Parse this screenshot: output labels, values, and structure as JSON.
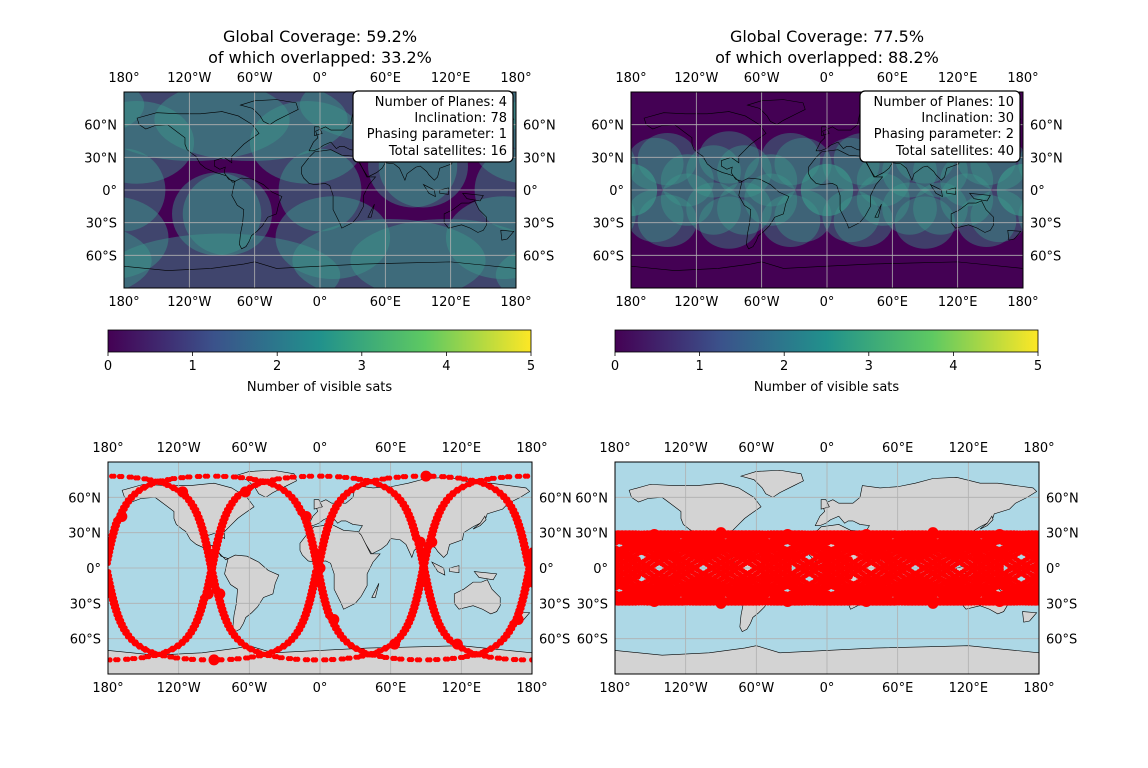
{
  "colors": {
    "viridis": [
      "#440154",
      "#3b528b",
      "#21918c",
      "#5ec962",
      "#fde725"
    ],
    "ocean": "#add8e6",
    "land": "#d3d3d3",
    "sat": "#ff0000",
    "grid": "#b0b0b0"
  },
  "ticks": {
    "lon": [
      "180°",
      "120°W",
      "60°W",
      "0°",
      "60°E",
      "120°E",
      "180°"
    ],
    "lat": [
      "60°N",
      "30°N",
      "0°",
      "30°S",
      "60°S"
    ]
  },
  "colorbar": {
    "label": "Number of visible sats",
    "ticks": [
      "0",
      "1",
      "2",
      "3",
      "4",
      "5"
    ],
    "range": [
      0,
      5
    ]
  },
  "panels": {
    "top_left": {
      "title_line1": "Global Coverage: 59.2%",
      "title_line2": "of which overlapped: 33.2%",
      "info": [
        "Number of Planes: 4",
        "Inclination: 78",
        "Phasing parameter: 1",
        "Total satellites: 16"
      ]
    },
    "top_right": {
      "title_line1": "Global Coverage: 77.5%",
      "title_line2": "of which overlapped: 88.2%",
      "info": [
        "Number of Planes: 10",
        "Inclination: 30",
        "Phasing parameter: 2",
        "Total satellites: 40"
      ]
    }
  },
  "constellations": {
    "a": {
      "planes": 4,
      "inclination": 78,
      "phasing": 1,
      "sats": 16
    },
    "b": {
      "planes": 10,
      "inclination": 30,
      "phasing": 2,
      "sats": 40
    }
  }
}
